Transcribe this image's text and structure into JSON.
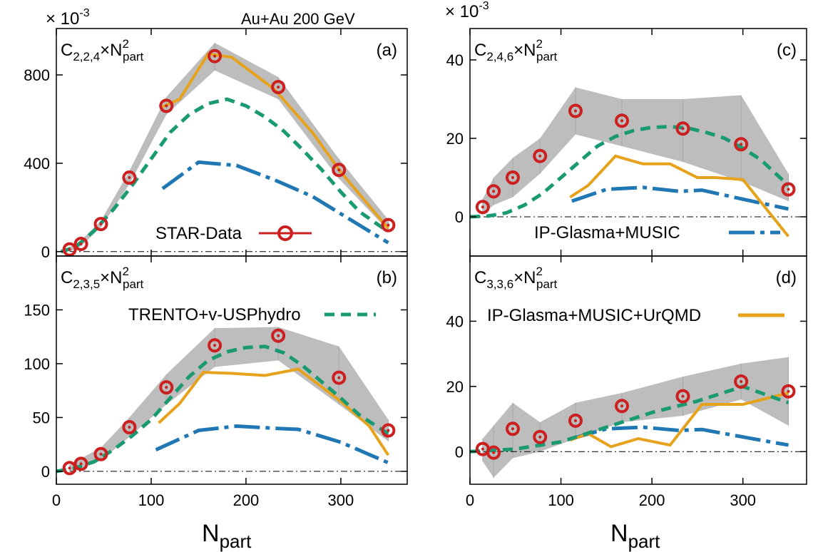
{
  "figure": {
    "header_text": "Au+Au 200 GeV",
    "scale_left": "× 10",
    "scale_left_exp": "-3",
    "scale_right": "× 10",
    "scale_right_exp": "-3",
    "xlabel_main": "N",
    "xlabel_sub": "part"
  },
  "legend": {
    "star": "STAR-Data",
    "trento": "TRENTO+v-USPhydro",
    "ipg": "IP-Glasma+MUSIC",
    "ipgu": "IP-Glasma+MUSIC+UrQMD"
  },
  "colors": {
    "star": "#cc1f1f",
    "trento": "#1a9a72",
    "ipg": "#1f77b4",
    "ipgu": "#e6a21c",
    "band": "#bdbdbd"
  },
  "chart_data": [
    {
      "id": "a",
      "type": "line",
      "panel_label": "(a)",
      "ylabel_main": "C",
      "ylabel_sub": "2,2,4",
      "ylabel_times": "×N",
      "ylabel_sup": "2",
      "ylabel_sub2": "part",
      "xlim": [
        0,
        370
      ],
      "ylim": [
        -20,
        1010
      ],
      "xticks": [
        0,
        100,
        200,
        300
      ],
      "yticks": [
        0,
        400,
        800
      ],
      "star": {
        "x": [
          14,
          26,
          47,
          77,
          116,
          167,
          234,
          298,
          350
        ],
        "y": [
          10,
          35,
          125,
          335,
          660,
          885,
          745,
          370,
          120
        ]
      },
      "band": {
        "x": [
          14,
          26,
          47,
          77,
          116,
          167,
          234,
          298,
          350
        ],
        "low": [
          0,
          25,
          110,
          305,
          620,
          820,
          690,
          330,
          95
        ],
        "high": [
          20,
          50,
          140,
          365,
          700,
          945,
          790,
          420,
          145
        ]
      },
      "trento": {
        "x": [
          5,
          20,
          40,
          60,
          80,
          100,
          120,
          140,
          160,
          180,
          200,
          220,
          240,
          260,
          280,
          300,
          320,
          350
        ],
        "y": [
          0,
          20,
          95,
          190,
          300,
          420,
          540,
          620,
          670,
          690,
          660,
          610,
          545,
          460,
          370,
          270,
          180,
          90
        ]
      },
      "ipg": {
        "x": [
          112,
          150,
          190,
          230,
          270,
          310,
          350
        ],
        "y": [
          285,
          405,
          390,
          325,
          250,
          145,
          40
        ]
      },
      "ipgu": {
        "x": [
          112,
          130,
          160,
          185,
          230,
          270,
          300,
          350
        ],
        "y": [
          655,
          690,
          895,
          880,
          735,
          540,
          360,
          105
        ]
      }
    },
    {
      "id": "b",
      "type": "line",
      "panel_label": "(b)",
      "ylabel_main": "C",
      "ylabel_sub": "2,3,5",
      "ylabel_times": "×N",
      "ylabel_sup": "2",
      "ylabel_sub2": "part",
      "xlim": [
        0,
        370
      ],
      "ylim": [
        -12,
        200
      ],
      "xticks": [
        0,
        100,
        200,
        300
      ],
      "yticks": [
        0,
        50,
        100,
        150
      ],
      "star": {
        "x": [
          14,
          26,
          47,
          77,
          116,
          167,
          234,
          298,
          350
        ],
        "y": [
          3,
          7,
          16,
          41,
          78,
          117,
          126,
          87,
          38
        ]
      },
      "band": {
        "x": [
          14,
          26,
          47,
          77,
          116,
          167,
          234,
          298,
          350
        ],
        "low": [
          0,
          3,
          10,
          32,
          62,
          97,
          103,
          62,
          28
        ],
        "high": [
          6,
          12,
          22,
          50,
          90,
          133,
          134,
          116,
          48
        ]
      },
      "trento": {
        "x": [
          0,
          20,
          40,
          60,
          80,
          100,
          120,
          140,
          160,
          180,
          200,
          220,
          240,
          260,
          280,
          300,
          320,
          350
        ],
        "y": [
          0,
          3,
          9,
          20,
          33,
          48,
          68,
          88,
          103,
          111,
          115,
          116,
          110,
          98,
          83,
          68,
          52,
          35
        ]
      },
      "ipg": {
        "x": [
          105,
          150,
          190,
          230,
          255,
          300,
          350
        ],
        "y": [
          20,
          38,
          42,
          40,
          39,
          27,
          8
        ]
      },
      "ipgu": {
        "x": [
          108,
          130,
          155,
          185,
          220,
          255,
          300,
          330,
          350
        ],
        "y": [
          45,
          63,
          92,
          91,
          89,
          95,
          65,
          42,
          15
        ]
      }
    },
    {
      "id": "c",
      "type": "line",
      "panel_label": "(c)",
      "ylabel_main": "C",
      "ylabel_sub": "2,4,6",
      "ylabel_times": "×N",
      "ylabel_sup": "2",
      "ylabel_sub2": "part",
      "xlim": [
        0,
        370
      ],
      "ylim": [
        -10,
        48
      ],
      "xticks": [
        0,
        100,
        200,
        300
      ],
      "yticks": [
        0,
        20,
        40
      ],
      "star": {
        "x": [
          14,
          26,
          47,
          77,
          116,
          167,
          234,
          298,
          350
        ],
        "y": [
          2.5,
          6.5,
          10,
          15.5,
          27,
          24.5,
          22.5,
          18.5,
          7
        ]
      },
      "band": {
        "x": [
          14,
          26,
          47,
          77,
          116,
          167,
          234,
          298,
          350
        ],
        "low": [
          0.5,
          3,
          5,
          11,
          21,
          18,
          14,
          9,
          4
        ],
        "high": [
          4.5,
          10,
          15,
          20,
          33,
          30,
          30,
          31,
          11
        ]
      },
      "trento": {
        "x": [
          0,
          20,
          40,
          60,
          80,
          100,
          120,
          140,
          160,
          180,
          200,
          220,
          240,
          260,
          280,
          300,
          320,
          350
        ],
        "y": [
          0,
          0.2,
          1,
          3,
          6,
          10,
          14,
          18,
          20.5,
          22,
          22.8,
          23,
          22.6,
          21.5,
          20,
          17.5,
          14.5,
          8
        ]
      },
      "ipg": {
        "x": [
          112,
          150,
          190,
          230,
          255,
          300,
          350
        ],
        "y": [
          4,
          7,
          7.5,
          6.5,
          6.8,
          4.5,
          2
        ]
      },
      "ipgu": {
        "x": [
          110,
          130,
          160,
          190,
          220,
          250,
          270,
          300,
          350
        ],
        "y": [
          5,
          8,
          15.5,
          13.5,
          13.5,
          10,
          10,
          9.5,
          -5
        ]
      }
    },
    {
      "id": "d",
      "type": "line",
      "panel_label": "(d)",
      "ylabel_main": "C",
      "ylabel_sub": "3,3,6",
      "ylabel_times": "×N",
      "ylabel_sup": "2",
      "ylabel_sub2": "part",
      "xlim": [
        0,
        370
      ],
      "ylim": [
        -10,
        60
      ],
      "xticks": [
        0,
        100,
        200,
        300
      ],
      "yticks": [
        0,
        20,
        40
      ],
      "star": {
        "x": [
          14,
          26,
          47,
          77,
          116,
          167,
          234,
          298,
          350
        ],
        "y": [
          0.8,
          -0.3,
          7,
          4.5,
          9.5,
          14,
          17,
          21.5,
          18.5
        ]
      },
      "band": {
        "x": [
          14,
          26,
          47,
          77,
          116,
          167,
          234,
          298,
          350
        ],
        "low": [
          -3,
          -8,
          -2,
          0,
          4,
          9,
          11,
          16,
          8
        ],
        "high": [
          4,
          8,
          15,
          9,
          15,
          18,
          23,
          27,
          29
        ]
      },
      "trento": {
        "x": [
          0,
          50,
          100,
          150,
          200,
          250,
          300,
          350
        ],
        "y": [
          0,
          0.8,
          3,
          7.5,
          12,
          15.5,
          20,
          15
        ]
      },
      "ipg": {
        "x": [
          112,
          150,
          190,
          230,
          255,
          300,
          350
        ],
        "y": [
          4,
          7,
          7.5,
          6.5,
          6.8,
          4.5,
          2
        ]
      },
      "ipgu": {
        "x": [
          110,
          130,
          155,
          185,
          220,
          255,
          300,
          350
        ],
        "y": [
          3.5,
          5.5,
          1.5,
          4,
          2,
          14.5,
          14.5,
          18
        ]
      }
    }
  ]
}
